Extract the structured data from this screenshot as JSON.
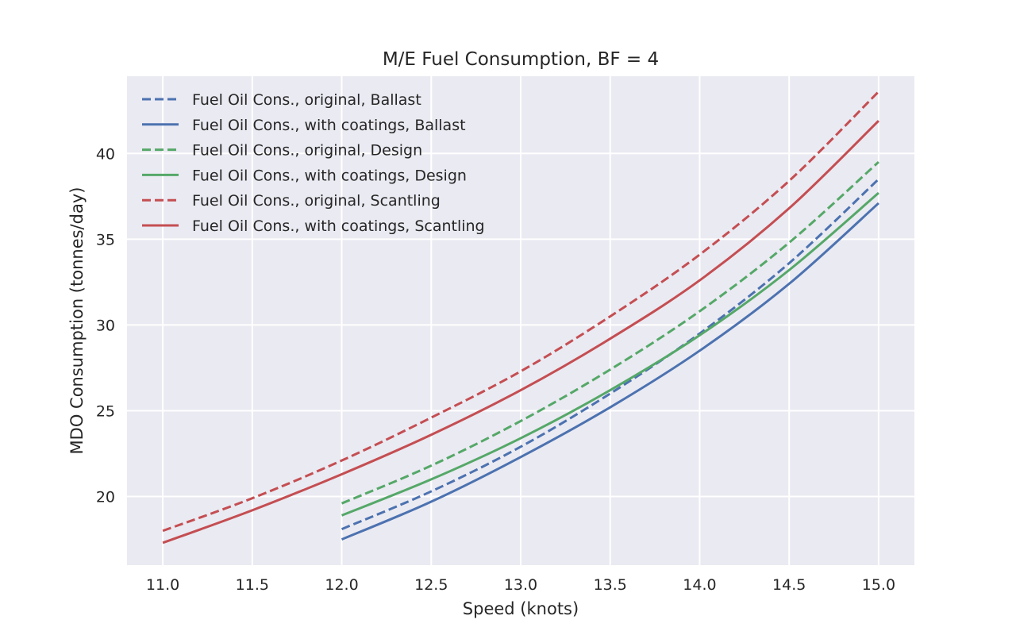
{
  "chart_data": {
    "type": "line",
    "title": "M/E Fuel Consumption, BF = 4",
    "xlabel": "Speed (knots)",
    "ylabel": "MDO Consumption (tonnes/day)",
    "xlim": [
      10.8,
      15.2
    ],
    "ylim": [
      16.0,
      44.5
    ],
    "xticks": [
      11.0,
      11.5,
      12.0,
      12.5,
      13.0,
      13.5,
      14.0,
      14.5,
      15.0
    ],
    "xtick_labels": [
      "11.0",
      "11.5",
      "12.0",
      "12.5",
      "13.0",
      "13.5",
      "14.0",
      "14.5",
      "15.0"
    ],
    "yticks": [
      20,
      25,
      30,
      35,
      40
    ],
    "ytick_labels": [
      "20",
      "25",
      "30",
      "35",
      "40"
    ],
    "grid": true,
    "legend_position": "top-left",
    "background": "#eaeaf2",
    "series": [
      {
        "name": "Fuel Oil Cons., original, Ballast",
        "color": "#4c72b0",
        "style": "dashed",
        "x": [
          12.0,
          12.5,
          13.0,
          13.5,
          14.0,
          14.5,
          15.0
        ],
        "y": [
          18.1,
          20.3,
          22.9,
          26.0,
          29.5,
          33.6,
          38.5
        ]
      },
      {
        "name": "Fuel Oil Cons., with coatings, Ballast",
        "color": "#4c72b0",
        "style": "solid",
        "x": [
          12.0,
          12.5,
          13.0,
          13.5,
          14.0,
          14.5,
          15.0
        ],
        "y": [
          17.5,
          19.7,
          22.3,
          25.2,
          28.5,
          32.4,
          37.1
        ]
      },
      {
        "name": "Fuel Oil Cons., original, Design",
        "color": "#55a868",
        "style": "dashed",
        "x": [
          12.0,
          12.5,
          13.0,
          13.5,
          14.0,
          14.5,
          15.0
        ],
        "y": [
          19.6,
          21.8,
          24.4,
          27.4,
          30.8,
          34.8,
          39.5
        ]
      },
      {
        "name": "Fuel Oil Cons., with coatings, Design",
        "color": "#55a868",
        "style": "solid",
        "x": [
          12.0,
          12.5,
          13.0,
          13.5,
          14.0,
          14.5,
          15.0
        ],
        "y": [
          18.9,
          21.0,
          23.4,
          26.2,
          29.4,
          33.2,
          37.7
        ]
      },
      {
        "name": "Fuel Oil Cons., original, Scantling",
        "color": "#c44e52",
        "style": "dashed",
        "x": [
          11.0,
          11.5,
          12.0,
          12.5,
          13.0,
          13.5,
          14.0,
          14.5,
          15.0
        ],
        "y": [
          18.0,
          19.9,
          22.1,
          24.6,
          27.3,
          30.5,
          34.1,
          38.4,
          43.6
        ]
      },
      {
        "name": "Fuel Oil Cons., with coatings, Scantling",
        "color": "#c44e52",
        "style": "solid",
        "x": [
          11.0,
          11.5,
          12.0,
          12.5,
          13.0,
          13.5,
          14.0,
          14.5,
          15.0
        ],
        "y": [
          17.3,
          19.2,
          21.3,
          23.6,
          26.2,
          29.2,
          32.6,
          36.8,
          41.9
        ]
      }
    ]
  }
}
